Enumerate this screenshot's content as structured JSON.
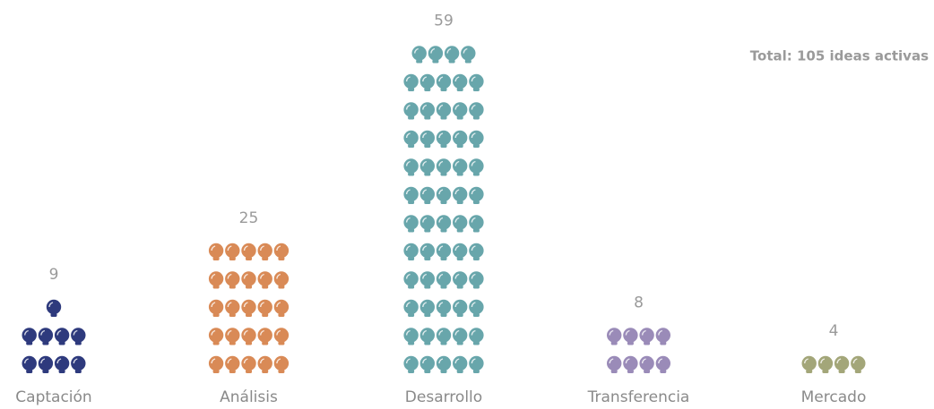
{
  "chart_data": {
    "type": "pictogram",
    "annotation": "Total: 105 ideas activas",
    "categories": [
      "Captación",
      "Análisis",
      "Desarrollo",
      "Transferencia",
      "Mercado"
    ],
    "values": [
      9,
      25,
      59,
      8,
      4
    ],
    "colors": [
      "#2e3a7d",
      "#d98a56",
      "#68a6ab",
      "#9a8bb8",
      "#a3a679"
    ]
  }
}
